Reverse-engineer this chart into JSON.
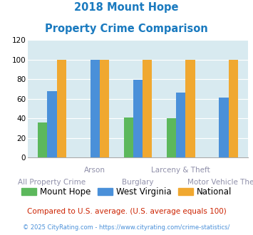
{
  "title_line1": "2018 Mount Hope",
  "title_line2": "Property Crime Comparison",
  "categories": [
    "All Property Crime",
    "Arson",
    "Burglary",
    "Larceny & Theft",
    "Motor Vehicle Theft"
  ],
  "series": {
    "Mount Hope": [
      36,
      0,
      41,
      40,
      0
    ],
    "West Virginia": [
      68,
      100,
      79,
      66,
      61
    ],
    "National": [
      100,
      100,
      100,
      100,
      100
    ]
  },
  "colors": {
    "Mount Hope": "#5cb85c",
    "West Virginia": "#4a90d9",
    "National": "#f0a830"
  },
  "ylim": [
    0,
    120
  ],
  "yticks": [
    0,
    20,
    40,
    60,
    80,
    100,
    120
  ],
  "background_color": "#d8eaf0",
  "title_color": "#1a7abf",
  "xlabel_color": "#9090aa",
  "legend_fontsize": 8.5,
  "footnote1": "Compared to U.S. average. (U.S. average equals 100)",
  "footnote2": "© 2025 CityRating.com - https://www.cityrating.com/crime-statistics/",
  "footnote1_color": "#cc2200",
  "footnote2_color": "#4a90d9"
}
